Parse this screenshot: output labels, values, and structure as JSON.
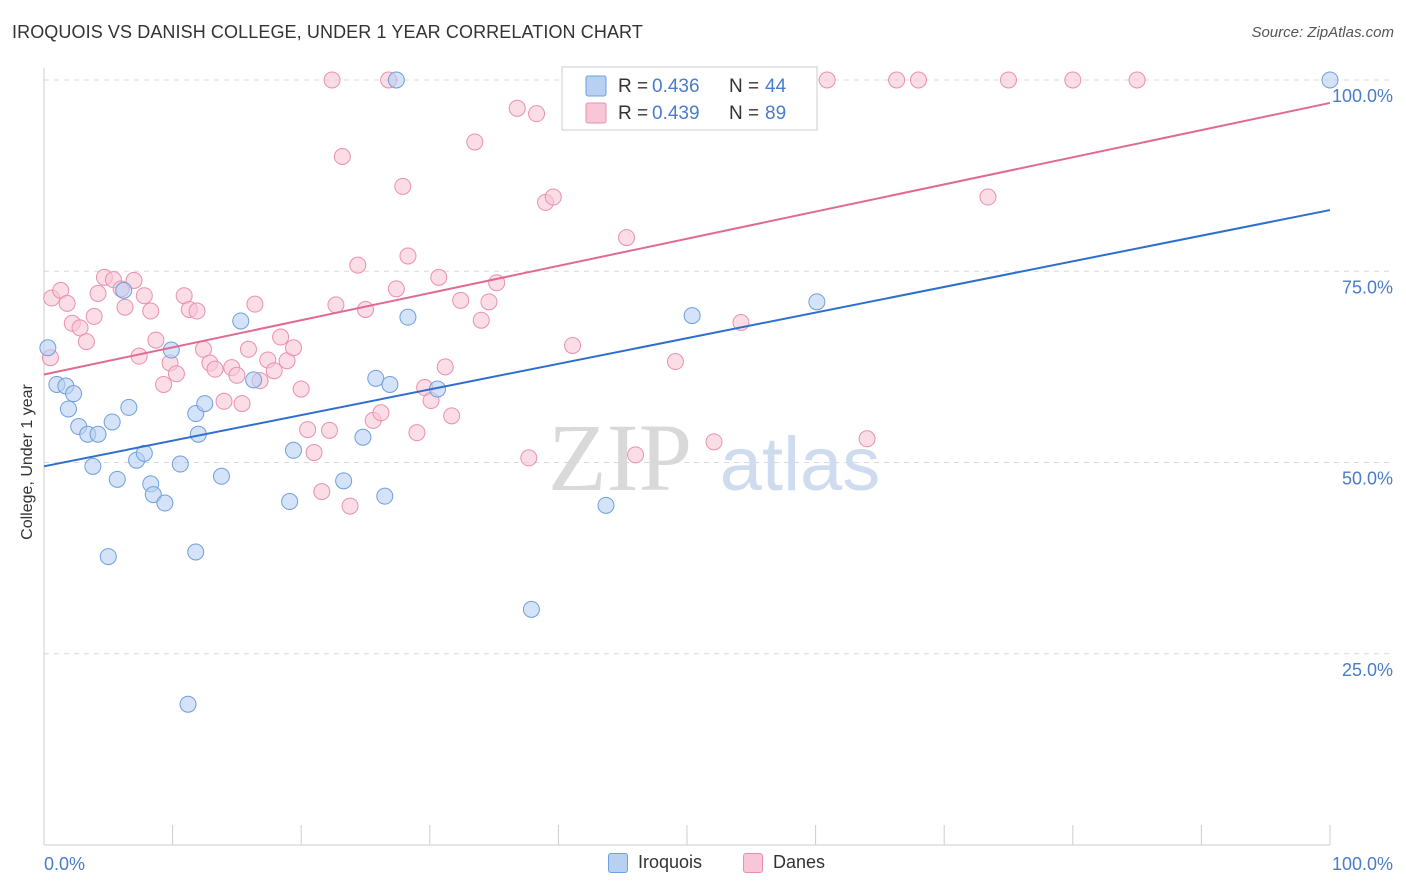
{
  "title": "IROQUOIS VS DANISH COLLEGE, UNDER 1 YEAR CORRELATION CHART",
  "source": "Source: ZipAtlas.com",
  "watermark": {
    "zip": "ZIP",
    "atlas": "atlas"
  },
  "colors": {
    "blue": "#6f9fdc",
    "blue_fill": "#b8d0f2",
    "blue_line": "#2e6fce",
    "pink": "#ea8fb0",
    "pink_fill": "#f8c6d6",
    "pink_line": "#e06a93",
    "tick_text": "#4a7cc9",
    "grid": "#d8d8d8"
  },
  "stats_legend": [
    {
      "r_label": "R =",
      "r_value": "0.436",
      "n_label": "N =",
      "n_value": "44"
    },
    {
      "r_label": "R =",
      "r_value": "0.439",
      "n_label": "N =",
      "n_value": "89"
    }
  ],
  "bottom_legend": [
    {
      "label": "Iroquois"
    },
    {
      "label": "Danes"
    }
  ],
  "chart_data": {
    "type": "scatter",
    "title": "IROQUOIS VS DANISH COLLEGE, UNDER 1 YEAR CORRELATION CHART",
    "ylabel": "College, Under 1 year",
    "xlabel": "",
    "xlim": [
      0,
      100
    ],
    "ylim": [
      0,
      100
    ],
    "x_tick_labels": [
      "0.0%",
      "100.0%"
    ],
    "y_tick_labels": [
      "25.0%",
      "50.0%",
      "75.0%",
      "100.0%"
    ],
    "y_gridlines": [
      25,
      50,
      75,
      100
    ],
    "legend_position": "top-center",
    "series": [
      {
        "name": "Iroquois",
        "trend": {
          "x": [
            0,
            100
          ],
          "y": [
            49.5,
            83.0
          ]
        },
        "points": [
          [
            0.3,
            65.0
          ],
          [
            1.0,
            60.2
          ],
          [
            1.7,
            60.0
          ],
          [
            2.3,
            59.0
          ],
          [
            1.9,
            57.0
          ],
          [
            2.7,
            54.7
          ],
          [
            3.4,
            53.7
          ],
          [
            3.8,
            49.5
          ],
          [
            4.2,
            53.7
          ],
          [
            5.3,
            55.3
          ],
          [
            5.7,
            47.8
          ],
          [
            6.2,
            72.5
          ],
          [
            6.6,
            57.2
          ],
          [
            7.2,
            50.3
          ],
          [
            7.8,
            51.2
          ],
          [
            8.3,
            47.2
          ],
          [
            8.5,
            45.8
          ],
          [
            9.4,
            44.7
          ],
          [
            9.9,
            64.7
          ],
          [
            10.6,
            49.8
          ],
          [
            11.8,
            56.4
          ],
          [
            12.0,
            53.7
          ],
          [
            12.5,
            57.7
          ],
          [
            13.8,
            48.2
          ],
          [
            15.3,
            68.5
          ],
          [
            16.3,
            60.8
          ],
          [
            19.1,
            44.9
          ],
          [
            19.4,
            51.6
          ],
          [
            23.3,
            47.6
          ],
          [
            24.8,
            53.3
          ],
          [
            25.8,
            61.0
          ],
          [
            26.5,
            45.6
          ],
          [
            26.9,
            60.2
          ],
          [
            27.4,
            100.0
          ],
          [
            28.3,
            69.0
          ],
          [
            30.6,
            59.6
          ],
          [
            5.0,
            37.7
          ],
          [
            11.8,
            38.3
          ],
          [
            11.2,
            18.4
          ],
          [
            37.9,
            30.8
          ],
          [
            43.7,
            44.4
          ],
          [
            50.4,
            69.2
          ],
          [
            60.1,
            71.0
          ],
          [
            100.0,
            100.0
          ]
        ]
      },
      {
        "name": "Danes",
        "trend": {
          "x": [
            0,
            100
          ],
          "y": [
            61.5,
            97.0
          ]
        },
        "points": [
          [
            0.5,
            63.7
          ],
          [
            0.6,
            71.5
          ],
          [
            1.3,
            72.5
          ],
          [
            1.8,
            70.8
          ],
          [
            2.2,
            68.2
          ],
          [
            2.8,
            67.6
          ],
          [
            3.3,
            65.8
          ],
          [
            3.9,
            69.1
          ],
          [
            4.2,
            72.1
          ],
          [
            4.7,
            74.2
          ],
          [
            5.4,
            73.9
          ],
          [
            6.0,
            72.7
          ],
          [
            6.3,
            70.3
          ],
          [
            7.0,
            73.8
          ],
          [
            7.4,
            63.9
          ],
          [
            7.8,
            71.8
          ],
          [
            8.3,
            69.8
          ],
          [
            8.7,
            66.0
          ],
          [
            9.3,
            60.2
          ],
          [
            9.8,
            63.0
          ],
          [
            10.3,
            61.6
          ],
          [
            10.9,
            71.8
          ],
          [
            11.3,
            70.0
          ],
          [
            11.9,
            69.8
          ],
          [
            12.4,
            64.8
          ],
          [
            12.9,
            63.0
          ],
          [
            13.3,
            62.2
          ],
          [
            14.0,
            58.0
          ],
          [
            14.6,
            62.4
          ],
          [
            15.0,
            61.4
          ],
          [
            15.4,
            57.7
          ],
          [
            15.9,
            64.8
          ],
          [
            16.4,
            70.7
          ],
          [
            16.8,
            60.7
          ],
          [
            17.4,
            63.4
          ],
          [
            17.9,
            62.0
          ],
          [
            18.4,
            66.4
          ],
          [
            18.9,
            63.3
          ],
          [
            19.4,
            65.0
          ],
          [
            20.0,
            59.6
          ],
          [
            20.5,
            54.3
          ],
          [
            21.0,
            51.3
          ],
          [
            21.6,
            46.2
          ],
          [
            22.2,
            54.2
          ],
          [
            22.7,
            70.6
          ],
          [
            23.2,
            90.0
          ],
          [
            23.8,
            44.3
          ],
          [
            24.4,
            75.8
          ],
          [
            25.0,
            70.0
          ],
          [
            25.6,
            55.5
          ],
          [
            26.2,
            56.5
          ],
          [
            26.8,
            100.0
          ],
          [
            27.4,
            72.7
          ],
          [
            27.9,
            86.1
          ],
          [
            28.3,
            77.0
          ],
          [
            29.0,
            53.9
          ],
          [
            29.6,
            59.8
          ],
          [
            30.1,
            58.1
          ],
          [
            30.7,
            74.2
          ],
          [
            31.2,
            62.5
          ],
          [
            31.7,
            56.1
          ],
          [
            32.4,
            71.2
          ],
          [
            33.5,
            91.9
          ],
          [
            34.0,
            68.6
          ],
          [
            34.6,
            71.0
          ],
          [
            35.2,
            73.5
          ],
          [
            36.8,
            96.3
          ],
          [
            37.7,
            50.6
          ],
          [
            38.3,
            95.6
          ],
          [
            39.0,
            84.0
          ],
          [
            39.6,
            84.7
          ],
          [
            41.1,
            65.3
          ],
          [
            44.4,
            100.0
          ],
          [
            45.3,
            79.4
          ],
          [
            46.0,
            51.0
          ],
          [
            49.1,
            63.2
          ],
          [
            52.1,
            52.7
          ],
          [
            54.2,
            68.3
          ],
          [
            57.5,
            100.0
          ],
          [
            60.9,
            100.0
          ],
          [
            64.0,
            53.1
          ],
          [
            66.3,
            100.0
          ],
          [
            68.0,
            100.0
          ],
          [
            73.4,
            84.7
          ],
          [
            75.0,
            100.0
          ],
          [
            80.0,
            100.0
          ],
          [
            85.0,
            100.0
          ],
          [
            50.0,
            100.0
          ],
          [
            22.4,
            100.0
          ]
        ]
      }
    ]
  }
}
